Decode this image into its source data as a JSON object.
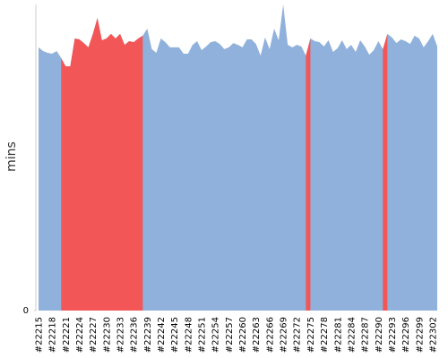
{
  "chart_data": {
    "type": "area",
    "y_label": "mins",
    "categories": [
      "#22215",
      null,
      null,
      "#22218",
      null,
      null,
      "#22221",
      null,
      null,
      "#22224",
      null,
      null,
      "#22227",
      null,
      null,
      "#22230",
      null,
      null,
      "#22233",
      null,
      null,
      "#22236",
      null,
      null,
      "#22239",
      null,
      null,
      "#22242",
      null,
      null,
      "#22245",
      null,
      null,
      "#22248",
      null,
      null,
      "#22251",
      null,
      null,
      "#22254",
      null,
      null,
      "#22257",
      null,
      null,
      "#22260",
      null,
      null,
      "#22263",
      null,
      null,
      "#22266",
      null,
      null,
      "#22269",
      null,
      null,
      "#22272",
      null,
      null,
      "#22275",
      null,
      null,
      "#22278",
      null,
      null,
      "#22281",
      null,
      null,
      "#22284",
      null,
      null,
      "#22287",
      null,
      null,
      "#22290",
      null,
      null,
      "#22293",
      null,
      null,
      "#22296",
      null,
      null,
      "#22299",
      null,
      null,
      "#22302",
      null
    ],
    "series": [
      {
        "color": "#8fb1db",
        "values": [
          86,
          84.8,
          84.2,
          83.9,
          84.8,
          82.5,
          79.8,
          79.8,
          88.9,
          88.6,
          87.4,
          86,
          90.4,
          95.6,
          88.3,
          88.9,
          90.4,
          88.9,
          90.4,
          86.8,
          88,
          87.7,
          88.9,
          89.8,
          92.1,
          85.4,
          84.2,
          88.9,
          87.7,
          86,
          86,
          86,
          83.9,
          83.9,
          86.8,
          88,
          85.1,
          86.3,
          87.7,
          88,
          87.1,
          85.4,
          86,
          87.4,
          86.8,
          86,
          88.6,
          88.6,
          87.1,
          83.3,
          89.2,
          85.4,
          92.1,
          88.3,
          100,
          86.8,
          86,
          86.8,
          86.3,
          83.3,
          88.9,
          88,
          87.7,
          86.3,
          88.3,
          84.5,
          85.7,
          88.3,
          85.4,
          86.8,
          84.5,
          88.3,
          86.3,
          83.6,
          85.1,
          88,
          85.4,
          90.4,
          89.2,
          87.4,
          88.6,
          88,
          87.1,
          89.8,
          88.9,
          86,
          88,
          90.4,
          86.3
        ]
      },
      {
        "color": "#f25656",
        "values": [
          null,
          null,
          null,
          null,
          null,
          82.5,
          79.8,
          79.8,
          88.9,
          88.6,
          87.4,
          86,
          90.4,
          95.6,
          88.3,
          88.9,
          90.4,
          88.9,
          90.4,
          86.8,
          88,
          87.7,
          88.9,
          89.8,
          null,
          null,
          null,
          null,
          null,
          null,
          null,
          null,
          null,
          null,
          null,
          null,
          null,
          null,
          null,
          null,
          null,
          null,
          null,
          null,
          null,
          null,
          null,
          null,
          null,
          null,
          null,
          null,
          null,
          null,
          null,
          null,
          null,
          null,
          null,
          83.3,
          88.9,
          null,
          null,
          null,
          null,
          null,
          null,
          null,
          null,
          null,
          null,
          null,
          null,
          null,
          null,
          null,
          85.4,
          90.4,
          null,
          null,
          null,
          null,
          null,
          null,
          null,
          null,
          null,
          null,
          null
        ]
      }
    ],
    "ylim": [
      0,
      100
    ],
    "yticks": [
      0
    ],
    "grid": false
  }
}
